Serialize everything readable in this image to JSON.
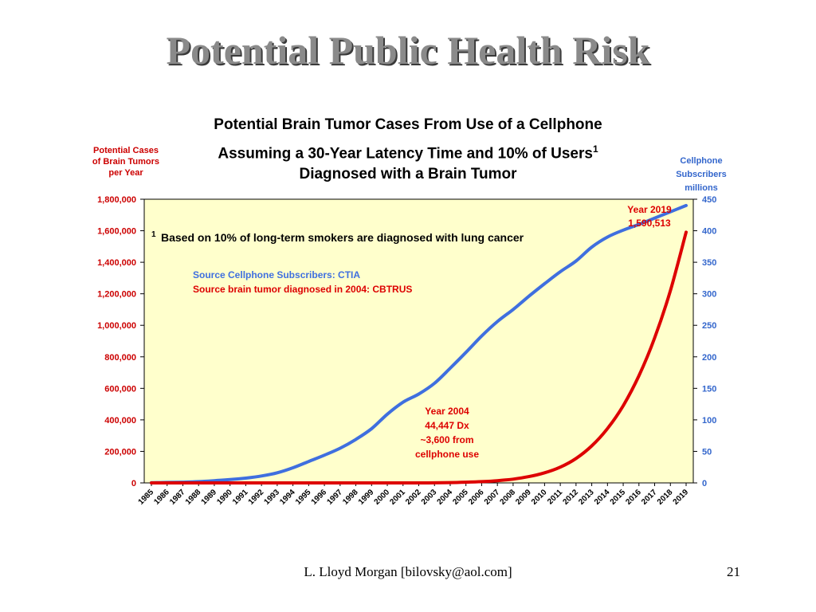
{
  "slide": {
    "title": "Potential Public Health Risk",
    "footer_author": "L. Lloyd Morgan  [bilovsky@aol.com]",
    "page_number": "21"
  },
  "chart_data": {
    "type": "line",
    "title_lines": [
      "Potential Brain Tumor Cases From Use of a Cellphone",
      "Assuming a 30-Year Latency Time and 10% of Users",
      "Diagnosed with a Brain Tumor"
    ],
    "title_superscript": "1",
    "left_axis_label": [
      "Potential Cases",
      "of Brain Tumors",
      "per Year"
    ],
    "right_axis_label": [
      "Cellphone",
      "Subscribers",
      "millions"
    ],
    "left_ylim": [
      0,
      1800000
    ],
    "right_ylim": [
      0,
      450
    ],
    "left_ticks": [
      "0",
      "200,000",
      "400,000",
      "600,000",
      "800,000",
      "1,000,000",
      "1,200,000",
      "1,400,000",
      "1,600,000",
      "1,800,000"
    ],
    "right_ticks": [
      "0",
      "50",
      "100",
      "150",
      "200",
      "250",
      "300",
      "350",
      "400",
      "450"
    ],
    "x": [
      "1985",
      "1986",
      "1987",
      "1988",
      "1989",
      "1990",
      "1991",
      "1992",
      "1993",
      "1994",
      "1995",
      "1996",
      "1997",
      "1998",
      "1999",
      "2000",
      "2001",
      "2002",
      "2003",
      "2004",
      "2005",
      "2006",
      "2007",
      "2008",
      "2009",
      "2010",
      "2011",
      "2012",
      "2013",
      "2014",
      "2015",
      "2016",
      "2017",
      "2018",
      "2019"
    ],
    "grid": false,
    "plot_background": "#ffffcc",
    "series": [
      {
        "axis": "left",
        "color": "#dd0000",
        "values": [
          0,
          0,
          0,
          0,
          0,
          0,
          0,
          0,
          0,
          0,
          0,
          0,
          0,
          0,
          0,
          0,
          0,
          100,
          500,
          2000,
          4500,
          8000,
          14000,
          24000,
          40000,
          64000,
          100000,
          155000,
          235000,
          345000,
          490000,
          680000,
          920000,
          1220000,
          1590513
        ]
      },
      {
        "axis": "right",
        "color": "#3f6fdf",
        "values": [
          0.3,
          0.7,
          1.2,
          2,
          3.5,
          5.3,
          7.6,
          11,
          16,
          24,
          34,
          44,
          55,
          69,
          86,
          109,
          128,
          141,
          158,
          182,
          207,
          233,
          256,
          275,
          296,
          316,
          335,
          352,
          374,
          390,
          401,
          410,
          420,
          430,
          440
        ]
      }
    ],
    "annotations": {
      "footnote_marker": "1",
      "footnote": "Based on 10% of long-term smokers are diagnosed with lung cancer",
      "source_blue": "Source Cellphone Subscribers:  CTIA",
      "source_red": "Source brain tumor diagnosed in 2004: CBTRUS",
      "year2019": [
        "Year 2019",
        "1,590,513"
      ],
      "year2004": [
        "Year 2004",
        "44,447 Dx",
        "~3,600 from",
        "cellphone use"
      ]
    }
  }
}
